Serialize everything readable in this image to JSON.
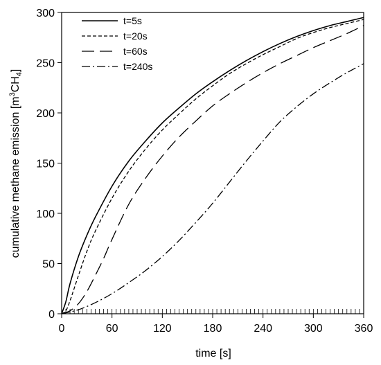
{
  "chart_data": {
    "type": "line",
    "xlabel": "time [s]",
    "ylabel": "cumulative methane emission [m",
    "ylabel_sup": "3",
    "ylabel_mid": "CH",
    "ylabel_sub": "4",
    "ylabel_end": "]",
    "xlim": [
      0,
      360
    ],
    "ylim": [
      0,
      300
    ],
    "xticks": [
      0,
      60,
      120,
      180,
      240,
      300,
      360
    ],
    "yticks": [
      0,
      50,
      100,
      150,
      200,
      250,
      300
    ],
    "x_minor_tick_step": 5,
    "grid": false,
    "legend_position": "top-left",
    "series": [
      {
        "name": "t=5s",
        "dash": "solid",
        "x": [
          0,
          5,
          10,
          20,
          30,
          40,
          60,
          80,
          100,
          120,
          140,
          160,
          180,
          200,
          220,
          240,
          260,
          280,
          300,
          320,
          340,
          360
        ],
        "y": [
          0,
          12,
          30,
          57,
          78,
          96,
          127,
          152,
          172,
          190,
          205,
          219,
          231,
          242,
          252,
          261,
          269,
          276,
          282,
          287,
          291,
          295
        ]
      },
      {
        "name": "t=20s",
        "dash": "5,3",
        "x": [
          0,
          5,
          10,
          20,
          30,
          40,
          60,
          80,
          100,
          120,
          140,
          160,
          180,
          200,
          220,
          240,
          260,
          280,
          300,
          320,
          340,
          360
        ],
        "y": [
          0,
          3,
          13,
          38,
          62,
          82,
          115,
          142,
          164,
          183,
          199,
          214,
          227,
          239,
          249,
          258,
          266,
          274,
          280,
          285,
          289,
          293
        ]
      },
      {
        "name": "t=60s",
        "dash": "18,8",
        "x": [
          0,
          10,
          20,
          30,
          40,
          50,
          60,
          80,
          100,
          120,
          140,
          160,
          180,
          200,
          220,
          240,
          260,
          280,
          300,
          320,
          340,
          360
        ],
        "y": [
          0,
          3,
          10,
          22,
          38,
          55,
          74,
          109,
          135,
          157,
          176,
          192,
          207,
          219,
          230,
          240,
          249,
          257,
          265,
          272,
          279,
          287
        ]
      },
      {
        "name": "t=240s",
        "dash": "12,4,2,4",
        "x": [
          0,
          20,
          40,
          60,
          80,
          100,
          120,
          140,
          160,
          180,
          200,
          220,
          240,
          260,
          280,
          300,
          320,
          340,
          360
        ],
        "y": [
          0,
          4,
          11,
          20,
          31,
          43,
          57,
          73,
          91,
          110,
          131,
          152,
          172,
          191,
          206,
          219,
          230,
          240,
          249
        ]
      }
    ]
  }
}
